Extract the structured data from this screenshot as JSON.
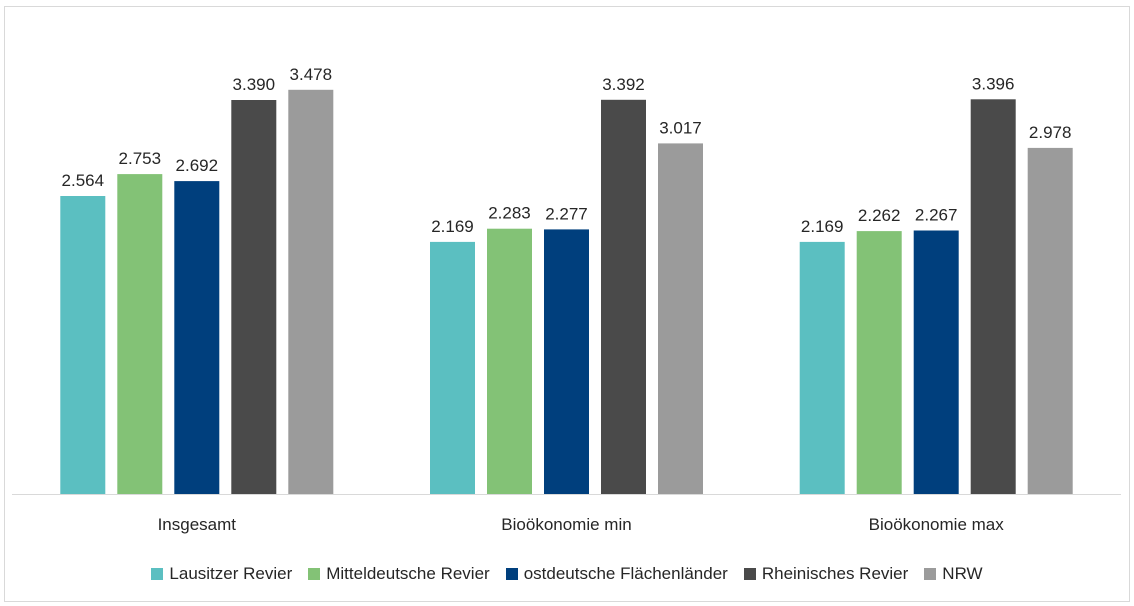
{
  "chart_data": {
    "type": "bar",
    "categories": [
      "Insgesamt",
      "Bioökonomie min",
      "Bioökonomie max"
    ],
    "series": [
      {
        "name": "Lausitzer Revier",
        "color": "#5bbfc1",
        "values": [
          2564,
          2169,
          2169
        ],
        "labels": [
          "2.564",
          "2.169",
          "2.169"
        ]
      },
      {
        "name": "Mitteldeutsche Revier",
        "color": "#83c276",
        "values": [
          2753,
          2283,
          2262
        ],
        "labels": [
          "2.753",
          "2.283",
          "2.262"
        ]
      },
      {
        "name": "ostdeutsche Flächenländer",
        "color": "#003f7d",
        "values": [
          2692,
          2277,
          2267
        ],
        "labels": [
          "2.692",
          "2.277",
          "2.267"
        ]
      },
      {
        "name": "Rheinisches Revier",
        "color": "#4a4a4a",
        "values": [
          3390,
          3392,
          3396
        ],
        "labels": [
          "3.390",
          "3.392",
          "3.396"
        ]
      },
      {
        "name": "NRW",
        "color": "#9b9b9b",
        "values": [
          3478,
          3017,
          2978
        ],
        "labels": [
          "3.478",
          "3.017",
          "2.978"
        ]
      }
    ],
    "ylim": [
      0,
      3700
    ],
    "grid": false,
    "legend_position": "bottom",
    "xlabel": "",
    "ylabel": "",
    "title": ""
  }
}
